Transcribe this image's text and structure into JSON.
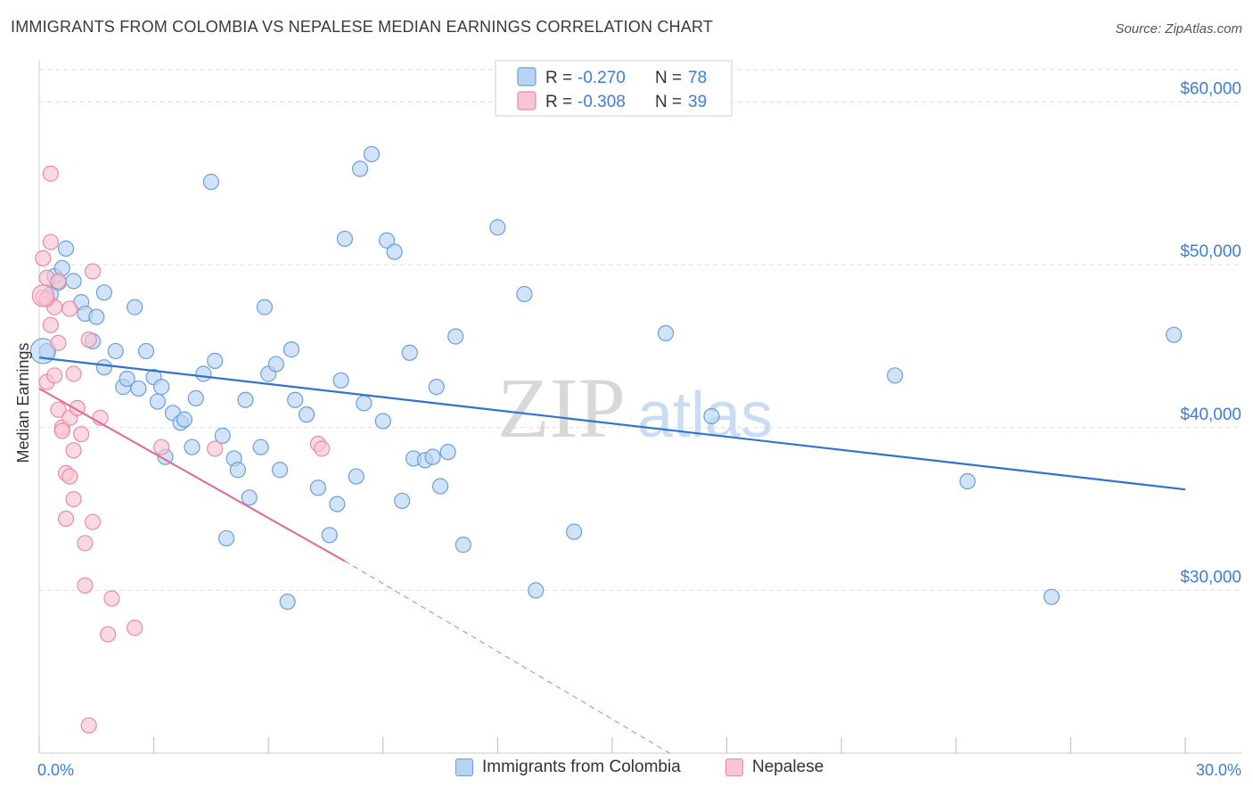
{
  "header": {
    "title": "IMMIGRANTS FROM COLOMBIA VS NEPALESE MEDIAN EARNINGS CORRELATION CHART",
    "source": "Source: ZipAtlas.com"
  },
  "watermark": {
    "zip": "ZIP",
    "atlas": "atlas"
  },
  "stats_legend": [
    {
      "r_label": "R = ",
      "r_value": "-0.270",
      "n_label": "N = ",
      "n_value": "78",
      "color": "#b8d4f5",
      "border": "#6a9fd8"
    },
    {
      "r_label": "R = ",
      "r_value": "-0.308",
      "n_label": "N = ",
      "n_value": "39",
      "color": "#f9c5d3",
      "border": "#e88aa6"
    }
  ],
  "bottom_legend": [
    {
      "label": "Immigrants from Colombia",
      "color": "#b8d4f5",
      "border": "#6a9fd8"
    },
    {
      "label": "Nepalese",
      "color": "#f9c5d3",
      "border": "#e88aa6"
    }
  ],
  "colors": {
    "blue_line": "#2f73d0",
    "pink_line": "#e0709a",
    "axis_text": "#3b7dd8",
    "grid": "#dddddd"
  },
  "chart_data": {
    "type": "scatter",
    "title": "IMMIGRANTS FROM COLOMBIA VS NEPALESE MEDIAN EARNINGS CORRELATION CHART",
    "xlabel": "",
    "ylabel": "Median Earnings",
    "xlim": [
      0,
      30
    ],
    "ylim": [
      20000,
      62000
    ],
    "x_tick_labels": [
      "0.0%",
      "30.0%"
    ],
    "y_ticks": [
      30000,
      40000,
      50000,
      60000
    ],
    "y_tick_labels": [
      "$30,000",
      "$40,000",
      "$50,000",
      "$60,000"
    ],
    "grid": true,
    "legend_position": "top-center",
    "series": [
      {
        "name": "Immigrants from Colombia",
        "color": "#b8d4f5",
        "stroke": "#6a9fd8",
        "trend": {
          "x": [
            0.0,
            30.0
          ],
          "y": [
            44300,
            36200
          ],
          "dashed_to": null
        },
        "points": [
          [
            0.2,
            44700
          ],
          [
            0.3,
            48200
          ],
          [
            0.4,
            49300
          ],
          [
            0.5,
            48900
          ],
          [
            0.6,
            49800
          ],
          [
            0.7,
            51000
          ],
          [
            0.9,
            49000
          ],
          [
            1.1,
            47700
          ],
          [
            1.2,
            47000
          ],
          [
            1.5,
            46800
          ],
          [
            1.4,
            45300
          ],
          [
            1.7,
            48300
          ],
          [
            1.7,
            43700
          ],
          [
            2.0,
            44700
          ],
          [
            2.2,
            42500
          ],
          [
            2.3,
            43000
          ],
          [
            2.5,
            47400
          ],
          [
            2.6,
            42400
          ],
          [
            2.8,
            44700
          ],
          [
            3.0,
            43100
          ],
          [
            3.1,
            41600
          ],
          [
            3.2,
            42500
          ],
          [
            3.3,
            38200
          ],
          [
            3.5,
            40900
          ],
          [
            3.7,
            40300
          ],
          [
            3.8,
            40500
          ],
          [
            4.0,
            38800
          ],
          [
            4.1,
            41800
          ],
          [
            4.3,
            43300
          ],
          [
            4.5,
            55100
          ],
          [
            4.6,
            44100
          ],
          [
            4.8,
            39500
          ],
          [
            4.9,
            33200
          ],
          [
            5.1,
            38100
          ],
          [
            5.2,
            37400
          ],
          [
            5.4,
            41700
          ],
          [
            5.5,
            35700
          ],
          [
            5.8,
            38800
          ],
          [
            5.9,
            47400
          ],
          [
            6.0,
            43300
          ],
          [
            6.2,
            43900
          ],
          [
            6.3,
            37400
          ],
          [
            6.5,
            29300
          ],
          [
            6.6,
            44800
          ],
          [
            6.7,
            41700
          ],
          [
            7.0,
            40800
          ],
          [
            7.3,
            36300
          ],
          [
            7.6,
            33400
          ],
          [
            7.8,
            35300
          ],
          [
            7.9,
            42900
          ],
          [
            8.0,
            51600
          ],
          [
            8.3,
            37000
          ],
          [
            8.4,
            55900
          ],
          [
            8.5,
            41500
          ],
          [
            8.7,
            56800
          ],
          [
            9.0,
            40400
          ],
          [
            9.1,
            51500
          ],
          [
            9.3,
            50800
          ],
          [
            9.5,
            35500
          ],
          [
            9.7,
            44600
          ],
          [
            9.8,
            38100
          ],
          [
            10.1,
            38000
          ],
          [
            10.3,
            38200
          ],
          [
            10.4,
            42500
          ],
          [
            10.5,
            36400
          ],
          [
            10.7,
            38500
          ],
          [
            10.9,
            45600
          ],
          [
            11.1,
            32800
          ],
          [
            12.0,
            52300
          ],
          [
            12.7,
            48200
          ],
          [
            13.0,
            30000
          ],
          [
            14.0,
            33600
          ],
          [
            16.4,
            45800
          ],
          [
            17.6,
            40700
          ],
          [
            22.4,
            43200
          ],
          [
            24.3,
            36700
          ],
          [
            26.5,
            29600
          ],
          [
            29.7,
            45700
          ]
        ]
      },
      {
        "name": "Nepalese",
        "color": "#f9c5d3",
        "stroke": "#e88aa6",
        "trend": {
          "x": [
            0.0,
            8.0
          ],
          "y": [
            42400,
            31800
          ],
          "dashed_to": [
            16.5,
            20000
          ]
        },
        "points": [
          [
            0.1,
            50400
          ],
          [
            0.1,
            48000
          ],
          [
            0.2,
            49200
          ],
          [
            0.2,
            42800
          ],
          [
            0.3,
            51400
          ],
          [
            0.3,
            46300
          ],
          [
            0.3,
            55600
          ],
          [
            0.4,
            43200
          ],
          [
            0.4,
            47400
          ],
          [
            0.5,
            49000
          ],
          [
            0.5,
            45200
          ],
          [
            0.5,
            41100
          ],
          [
            0.6,
            40000
          ],
          [
            0.6,
            39800
          ],
          [
            0.7,
            37200
          ],
          [
            0.7,
            34400
          ],
          [
            0.8,
            37000
          ],
          [
            0.8,
            40600
          ],
          [
            0.8,
            47300
          ],
          [
            0.9,
            43300
          ],
          [
            0.9,
            35600
          ],
          [
            0.9,
            38600
          ],
          [
            1.0,
            41200
          ],
          [
            1.1,
            39600
          ],
          [
            1.2,
            30300
          ],
          [
            1.2,
            32900
          ],
          [
            1.3,
            45400
          ],
          [
            1.3,
            21700
          ],
          [
            1.4,
            49600
          ],
          [
            1.4,
            34200
          ],
          [
            1.6,
            40600
          ],
          [
            1.8,
            27300
          ],
          [
            1.9,
            29500
          ],
          [
            2.5,
            27700
          ],
          [
            3.2,
            38800
          ],
          [
            4.6,
            38700
          ],
          [
            7.3,
            39000
          ],
          [
            7.4,
            38700
          ],
          [
            0.2,
            47900
          ]
        ]
      }
    ]
  }
}
